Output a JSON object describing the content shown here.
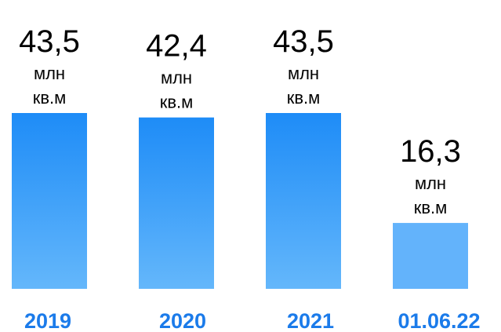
{
  "chart_data": {
    "type": "bar",
    "categories": [
      "2019",
      "2020",
      "2021",
      "01.06.22"
    ],
    "values": [
      43.5,
      42.4,
      43.5,
      16.3
    ],
    "value_labels": [
      "43,5",
      "42,4",
      "43,5",
      "16,3"
    ],
    "unit_line1": "млн",
    "unit_line2": "кв.м",
    "ylim": [
      0,
      45
    ],
    "grid": false,
    "legend": "none"
  },
  "colors": {
    "bar_gradient_top": "#1e8cf7",
    "bar_gradient_bottom": "#64b7fb",
    "bar_last": "#63b3fb",
    "category_label": "#1b7bea"
  }
}
